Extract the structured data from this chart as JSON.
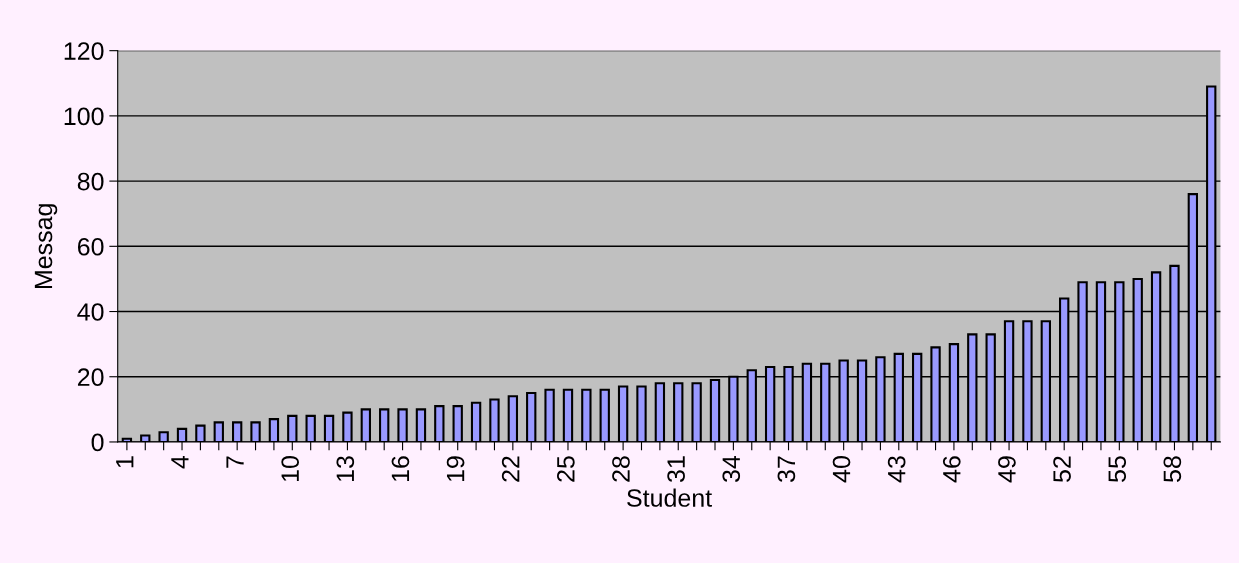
{
  "chart_data": {
    "type": "bar",
    "xlabel": "Student",
    "ylabel": "Messag",
    "categories": [
      "1",
      null,
      null,
      "4",
      null,
      null,
      "7",
      null,
      null,
      "10",
      null,
      null,
      "13",
      null,
      null,
      "16",
      null,
      null,
      "19",
      null,
      null,
      "22",
      null,
      null,
      "25",
      null,
      null,
      "28",
      null,
      null,
      "31",
      null,
      null,
      "34",
      null,
      null,
      "37",
      null,
      null,
      "40",
      null,
      null,
      "43",
      null,
      null,
      "46",
      null,
      null,
      "49",
      null,
      null,
      "52",
      null,
      null,
      "55",
      null,
      null,
      "58",
      null,
      null
    ],
    "values": [
      1,
      2,
      3,
      4,
      5,
      6,
      6,
      6,
      7,
      8,
      8,
      8,
      9,
      10,
      10,
      10,
      10,
      11,
      11,
      12,
      13,
      14,
      15,
      16,
      16,
      16,
      16,
      17,
      17,
      18,
      18,
      18,
      19,
      20,
      22,
      23,
      23,
      24,
      24,
      25,
      25,
      26,
      27,
      27,
      29,
      30,
      33,
      33,
      37,
      37,
      37,
      44,
      49,
      49,
      49,
      50,
      52,
      54,
      76,
      109
    ],
    "color": "#9999ff",
    "ylim": [
      0,
      120
    ],
    "yticks": [
      0,
      20,
      40,
      60,
      80,
      100,
      120
    ],
    "grid": "y",
    "legend": false
  }
}
